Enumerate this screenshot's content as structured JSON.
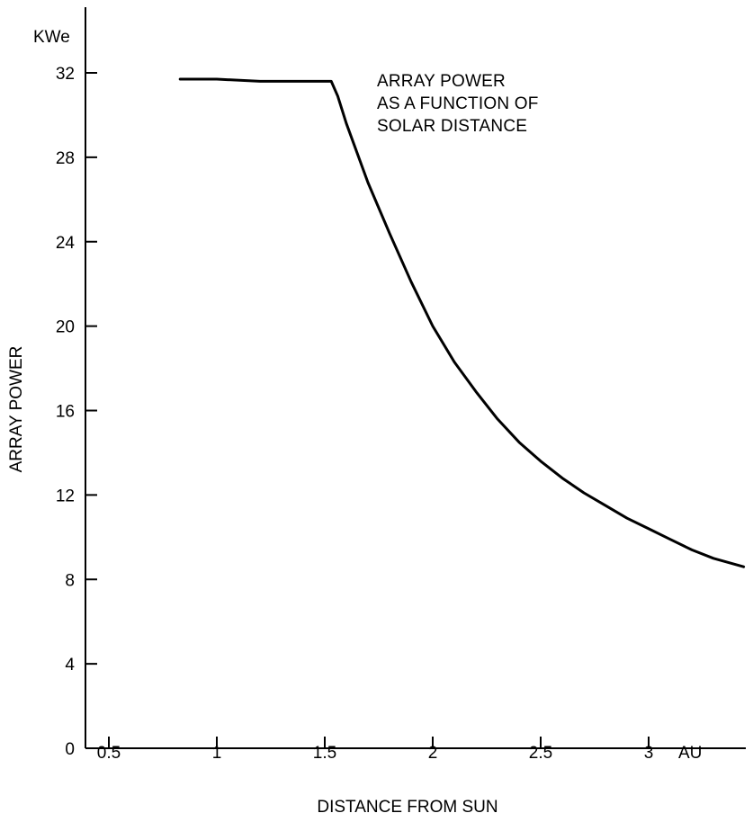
{
  "chart_data": {
    "type": "line",
    "annotation_lines": [
      "ARRAY POWER",
      "AS A FUNCTION OF",
      "SOLAR DISTANCE"
    ],
    "xlabel": "DISTANCE FROM SUN",
    "ylabel": "ARRAY POWER",
    "x_unit": "AU",
    "y_unit": "KWe",
    "x_ticks": [
      0.5,
      1,
      1.5,
      2,
      2.5,
      3
    ],
    "x_tick_labels": [
      "0.5",
      "1",
      "1.5",
      "2",
      "2.5",
      "3"
    ],
    "y_ticks": [
      0,
      4,
      8,
      12,
      16,
      20,
      24,
      28,
      32
    ],
    "y_tick_labels": [
      "0",
      "4",
      "8",
      "12",
      "16",
      "20",
      "24",
      "28",
      "32"
    ],
    "xlim": [
      0.4,
      3.44
    ],
    "ylim": [
      0,
      35
    ],
    "grid": false,
    "series": [
      {
        "x": [
          0.83,
          1.0,
          1.2,
          1.4,
          1.53,
          1.56,
          1.6,
          1.7,
          1.8,
          1.9,
          2.0,
          2.1,
          2.2,
          2.3,
          2.4,
          2.5,
          2.6,
          2.7,
          2.8,
          2.9,
          3.0,
          3.1,
          3.2,
          3.3,
          3.44
        ],
        "y": [
          31.7,
          31.7,
          31.6,
          31.6,
          31.6,
          30.9,
          29.6,
          26.8,
          24.4,
          22.1,
          20.0,
          18.3,
          16.9,
          15.6,
          14.5,
          13.6,
          12.8,
          12.1,
          11.5,
          10.9,
          10.4,
          9.9,
          9.4,
          9.0,
          8.6
        ]
      }
    ]
  }
}
